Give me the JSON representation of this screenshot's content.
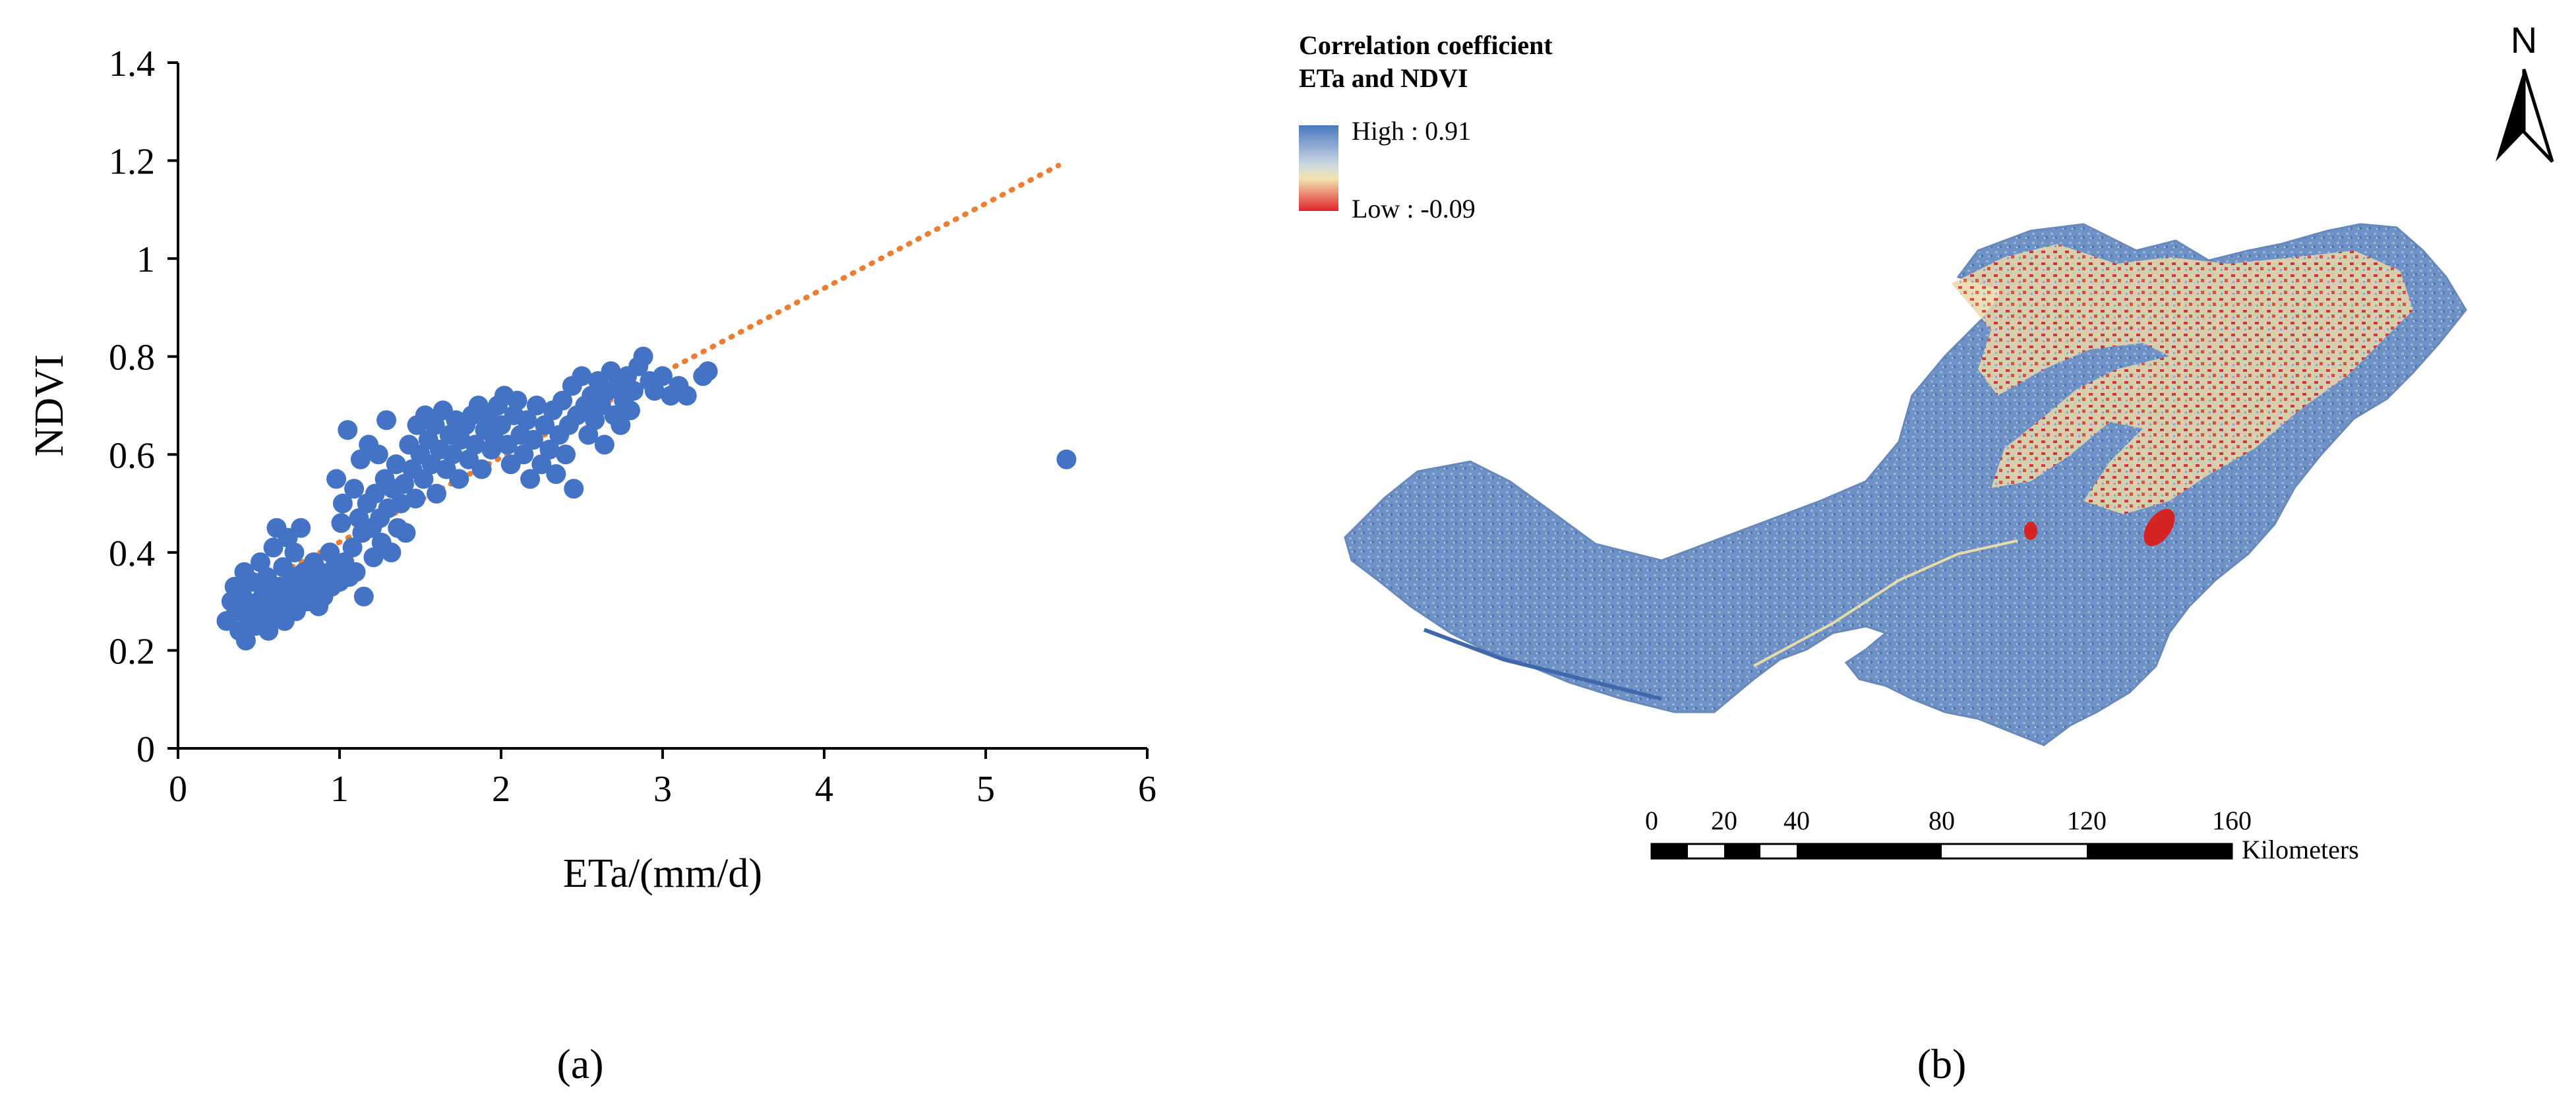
{
  "panels": {
    "a": "(a)",
    "b": "(b)"
  },
  "chart_data": {
    "type": "scatter",
    "xlabel": "ETa/(mm/d)",
    "ylabel": "NDVI",
    "xlim": [
      0,
      6
    ],
    "ylim": [
      0,
      1.4
    ],
    "xticks": [
      "0",
      "1",
      "2",
      "3",
      "4",
      "5",
      "6"
    ],
    "yticks": [
      "0",
      "0.2",
      "0.4",
      "0.6",
      "0.8",
      "1",
      "1.2",
      "1.4"
    ],
    "grid": false,
    "point_color": "#4472c4",
    "trend_color": "#ed7d31",
    "trendline": {
      "style": "dotted",
      "x": [
        0.3,
        5.45
      ],
      "y": [
        0.3,
        1.19
      ]
    },
    "points": [
      [
        0.3,
        0.26
      ],
      [
        0.33,
        0.3
      ],
      [
        0.35,
        0.33
      ],
      [
        0.36,
        0.28
      ],
      [
        0.38,
        0.24
      ],
      [
        0.4,
        0.31
      ],
      [
        0.41,
        0.36
      ],
      [
        0.42,
        0.22
      ],
      [
        0.43,
        0.27
      ],
      [
        0.45,
        0.29
      ],
      [
        0.46,
        0.34
      ],
      [
        0.48,
        0.25
      ],
      [
        0.5,
        0.3
      ],
      [
        0.51,
        0.38
      ],
      [
        0.52,
        0.27
      ],
      [
        0.53,
        0.32
      ],
      [
        0.55,
        0.35
      ],
      [
        0.56,
        0.24
      ],
      [
        0.58,
        0.29
      ],
      [
        0.59,
        0.41
      ],
      [
        0.6,
        0.3
      ],
      [
        0.61,
        0.45
      ],
      [
        0.62,
        0.27
      ],
      [
        0.63,
        0.33
      ],
      [
        0.65,
        0.37
      ],
      [
        0.66,
        0.26
      ],
      [
        0.67,
        0.31
      ],
      [
        0.68,
        0.43
      ],
      [
        0.7,
        0.29
      ],
      [
        0.71,
        0.35
      ],
      [
        0.72,
        0.4
      ],
      [
        0.73,
        0.28
      ],
      [
        0.75,
        0.33
      ],
      [
        0.76,
        0.45
      ],
      [
        0.77,
        0.31
      ],
      [
        0.78,
        0.36
      ],
      [
        0.8,
        0.3
      ],
      [
        0.82,
        0.34
      ],
      [
        0.84,
        0.38
      ],
      [
        0.85,
        0.32
      ],
      [
        0.87,
        0.29
      ],
      [
        0.88,
        0.36
      ],
      [
        0.9,
        0.31
      ],
      [
        0.92,
        0.35
      ],
      [
        0.94,
        0.4
      ],
      [
        0.95,
        0.33
      ],
      [
        0.97,
        0.37
      ],
      [
        0.98,
        0.55
      ],
      [
        1.0,
        0.34
      ],
      [
        1.01,
        0.46
      ],
      [
        1.02,
        0.5
      ],
      [
        1.03,
        0.38
      ],
      [
        1.05,
        0.65
      ],
      [
        1.06,
        0.35
      ],
      [
        1.08,
        0.41
      ],
      [
        1.09,
        0.53
      ],
      [
        1.1,
        0.36
      ],
      [
        1.12,
        0.47
      ],
      [
        1.13,
        0.59
      ],
      [
        1.14,
        0.44
      ],
      [
        1.15,
        0.31
      ],
      [
        1.17,
        0.5
      ],
      [
        1.18,
        0.62
      ],
      [
        1.2,
        0.45
      ],
      [
        1.21,
        0.39
      ],
      [
        1.22,
        0.52
      ],
      [
        1.24,
        0.6
      ],
      [
        1.25,
        0.47
      ],
      [
        1.26,
        0.42
      ],
      [
        1.28,
        0.55
      ],
      [
        1.29,
        0.67
      ],
      [
        1.3,
        0.49
      ],
      [
        1.32,
        0.4
      ],
      [
        1.33,
        0.53
      ],
      [
        1.35,
        0.58
      ],
      [
        1.36,
        0.45
      ],
      [
        1.38,
        0.5
      ],
      [
        1.4,
        0.54
      ],
      [
        1.41,
        0.44
      ],
      [
        1.43,
        0.62
      ],
      [
        1.45,
        0.57
      ],
      [
        1.47,
        0.51
      ],
      [
        1.48,
        0.66
      ],
      [
        1.5,
        0.6
      ],
      [
        1.52,
        0.55
      ],
      [
        1.53,
        0.68
      ],
      [
        1.55,
        0.63
      ],
      [
        1.57,
        0.58
      ],
      [
        1.59,
        0.66
      ],
      [
        1.6,
        0.52
      ],
      [
        1.62,
        0.61
      ],
      [
        1.64,
        0.69
      ],
      [
        1.66,
        0.57
      ],
      [
        1.68,
        0.64
      ],
      [
        1.7,
        0.6
      ],
      [
        1.72,
        0.67
      ],
      [
        1.74,
        0.55
      ],
      [
        1.75,
        0.63
      ],
      [
        1.78,
        0.66
      ],
      [
        1.8,
        0.59
      ],
      [
        1.82,
        0.68
      ],
      [
        1.84,
        0.62
      ],
      [
        1.86,
        0.7
      ],
      [
        1.88,
        0.57
      ],
      [
        1.9,
        0.65
      ],
      [
        1.92,
        0.68
      ],
      [
        1.94,
        0.61
      ],
      [
        1.96,
        0.63
      ],
      [
        1.98,
        0.7
      ],
      [
        2.0,
        0.66
      ],
      [
        2.02,
        0.72
      ],
      [
        2.04,
        0.62
      ],
      [
        2.06,
        0.58
      ],
      [
        2.08,
        0.68
      ],
      [
        2.1,
        0.71
      ],
      [
        2.12,
        0.64
      ],
      [
        2.14,
        0.6
      ],
      [
        2.16,
        0.67
      ],
      [
        2.18,
        0.55
      ],
      [
        2.2,
        0.63
      ],
      [
        2.22,
        0.7
      ],
      [
        2.25,
        0.58
      ],
      [
        2.27,
        0.66
      ],
      [
        2.3,
        0.61
      ],
      [
        2.32,
        0.69
      ],
      [
        2.34,
        0.56
      ],
      [
        2.36,
        0.64
      ],
      [
        2.38,
        0.71
      ],
      [
        2.4,
        0.6
      ],
      [
        2.42,
        0.66
      ],
      [
        2.44,
        0.74
      ],
      [
        2.45,
        0.53
      ],
      [
        2.47,
        0.68
      ],
      [
        2.5,
        0.76
      ],
      [
        2.52,
        0.7
      ],
      [
        2.54,
        0.64
      ],
      [
        2.56,
        0.72
      ],
      [
        2.58,
        0.67
      ],
      [
        2.6,
        0.75
      ],
      [
        2.62,
        0.7
      ],
      [
        2.64,
        0.62
      ],
      [
        2.66,
        0.73
      ],
      [
        2.68,
        0.77
      ],
      [
        2.7,
        0.68
      ],
      [
        2.72,
        0.74
      ],
      [
        2.74,
        0.66
      ],
      [
        2.76,
        0.71
      ],
      [
        2.78,
        0.76
      ],
      [
        2.8,
        0.69
      ],
      [
        2.82,
        0.73
      ],
      [
        2.85,
        0.78
      ],
      [
        2.88,
        0.8
      ],
      [
        2.92,
        0.75
      ],
      [
        2.95,
        0.73
      ],
      [
        3.0,
        0.76
      ],
      [
        3.05,
        0.72
      ],
      [
        3.1,
        0.74
      ],
      [
        3.15,
        0.72
      ],
      [
        3.25,
        0.76
      ],
      [
        3.28,
        0.77
      ],
      [
        5.5,
        0.59
      ]
    ]
  },
  "map": {
    "legend_title_line1": "Correlation coefficient",
    "legend_title_line2": "ETa and NDVI",
    "legend_high": "High : 0.91",
    "legend_low": "Low : -0.09",
    "color_high": "#4a78c2",
    "color_low": "#e0252a",
    "north_label": "N",
    "scale_labels": [
      "0",
      "20",
      "40",
      "80",
      "120",
      "160"
    ],
    "scale_unit": "Kilometers"
  }
}
